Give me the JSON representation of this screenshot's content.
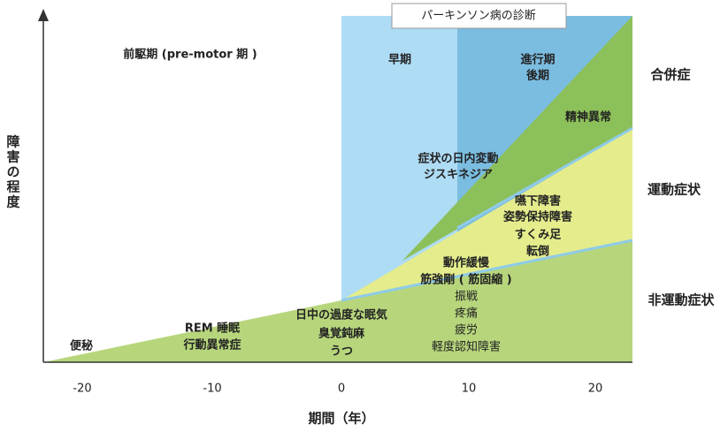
{
  "header": "パーキンソン病の診断",
  "y_axis": {
    "title": "障害の程度"
  },
  "x_axis": {
    "title": "期間（年）",
    "ticks": [
      -20,
      -10,
      0,
      10,
      20
    ]
  },
  "phases": {
    "prodromal": "前駆期 (pre-motor 期 )",
    "early": "早期",
    "advanced": [
      "進行期",
      "後期"
    ]
  },
  "categories": {
    "complications": "合併症",
    "motor": "運動症状",
    "non_motor": "非運動症状"
  },
  "symptoms": {
    "psychiatric": "精神異常",
    "fluctuation": [
      "症状の日内変動",
      "ジスキネジア"
    ],
    "late_motor": [
      "嚥下障害",
      "姿勢保持障害",
      "すくみ足",
      "転倒"
    ],
    "motor_main": [
      "動作緩慢",
      "筋強剛 ( 筋固縮 )"
    ],
    "non_motor_late": [
      "振戦",
      "疼痛",
      "疲労",
      "軽度認知障害"
    ],
    "premotor_near": [
      "日中の過度な眠気",
      "臭覚鈍麻",
      "うつ"
    ],
    "rem": [
      "REM 睡眠",
      "行動異常症"
    ],
    "constipation": "便秘"
  }
}
